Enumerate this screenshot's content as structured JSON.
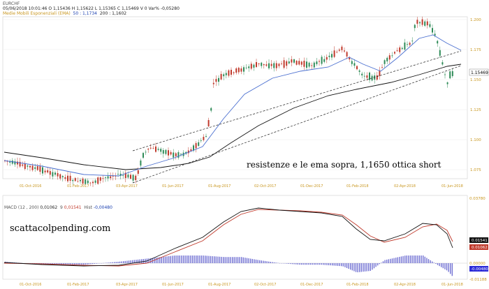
{
  "header": {
    "symbol": "EURCHF",
    "date": "05/06/2018",
    "time": "10:01:46",
    "open": "O 1,15436",
    "high": "H 1,15622",
    "low": "L 1,15365",
    "close": "C 1,15469",
    "volume": "V 0",
    "change": "Var% -0,05280",
    "ema_label": "Medie Mobili Esponenziali (EMA)",
    "ema50": "50 : 1,1734",
    "ema200": "200 : 1,1602"
  },
  "annotation": "resistenze e le ema sopra, 1,1650 ottica short",
  "watermark": "scattacolpending.com",
  "macd_header": {
    "label": "MACD",
    "params": "(12 , 200)",
    "macd_value": "0,01062",
    "signal_label": "9",
    "signal_value": "0,01541",
    "hist_label": "Hist",
    "hist_value": "-0,00480"
  },
  "price_axis": {
    "ticks": [
      "1.200",
      "1.175",
      "1.150",
      "1.125",
      "1.100",
      "1.075"
    ],
    "last_price": "1.15469"
  },
  "macd_axis": {
    "ticks": [
      "0.03780",
      "0.00000",
      "-0.01188"
    ],
    "signal_badge": "0.01541",
    "macd_badge": "0.01062",
    "hist_badge": "-0.00480"
  },
  "x_axis_labels": [
    "01-Oct-2016",
    "01-Feb-2017",
    "03-Apr-2017",
    "01-Jun-2017",
    "01-Aug-2017",
    "02-Oct-2017",
    "01-Dec-2017",
    "01-Feb-2018",
    "02-Apr-2018",
    "01-Jun-2018"
  ],
  "colors": {
    "candle_up": "#2e8b57",
    "candle_down": "#c0392b",
    "ema50": "#4a6fd0",
    "ema200": "#111111",
    "macd_line": "#111111",
    "signal_line": "#c0392b",
    "histogram": "#5a5acb"
  }
}
